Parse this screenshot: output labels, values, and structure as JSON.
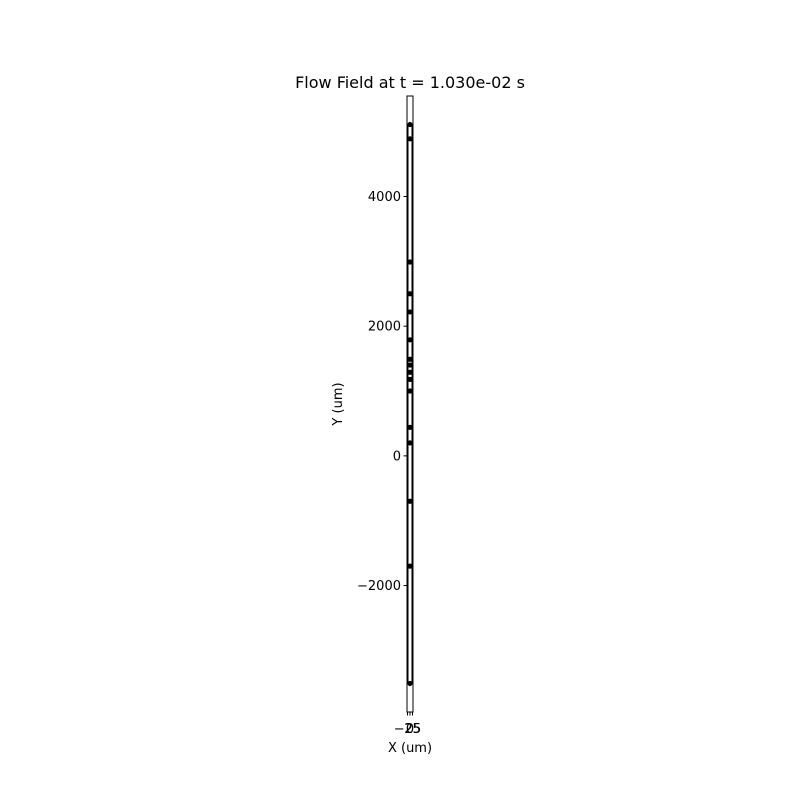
{
  "chart_data": {
    "type": "scatter",
    "title": "Flow Field at t = 1.030e-02 s",
    "xlabel": "X (um)",
    "ylabel": "Y (um)",
    "xlim": [
      -30,
      30
    ],
    "ylim": [
      -3950,
      5550
    ],
    "xticks": [
      -25,
      0,
      25
    ],
    "xtick_labels": [
      "−25",
      "0",
      "25"
    ],
    "yticks": [
      -2000,
      0,
      2000,
      4000
    ],
    "ytick_labels": [
      "−2000",
      "0",
      "2000",
      "4000"
    ],
    "grid": false,
    "legend": "none",
    "channel_walls_x": [
      -20,
      20
    ],
    "series": [
      {
        "marker_color": "#000000",
        "points": [
          {
            "x": 0,
            "y": 5110
          },
          {
            "x": 0,
            "y": 4890
          },
          {
            "x": 0,
            "y": 2990
          },
          {
            "x": 0,
            "y": 2500
          },
          {
            "x": 0,
            "y": 2220
          },
          {
            "x": 0,
            "y": 1790
          },
          {
            "x": 0,
            "y": 1490
          },
          {
            "x": 0,
            "y": 1400
          },
          {
            "x": 0,
            "y": 1290
          },
          {
            "x": 0,
            "y": 1180
          },
          {
            "x": 0,
            "y": 1000
          },
          {
            "x": 0,
            "y": 440
          },
          {
            "x": 0,
            "y": 200
          },
          {
            "x": 0,
            "y": -700
          },
          {
            "x": 0,
            "y": -1700
          },
          {
            "x": 0,
            "y": -3510
          }
        ]
      }
    ]
  }
}
